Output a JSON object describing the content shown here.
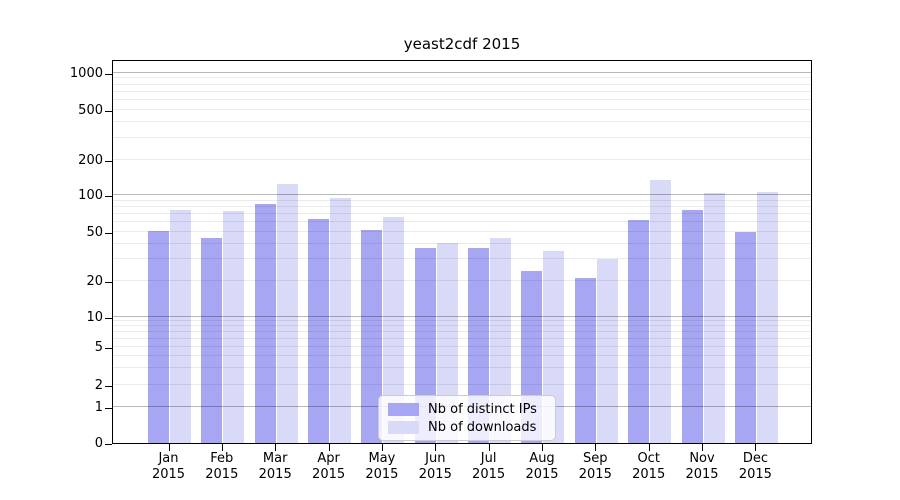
{
  "title": "yeast2cdf 2015",
  "chart_data": {
    "type": "bar",
    "title": "yeast2cdf 2015",
    "categories": [
      "Jan",
      "Feb",
      "Mar",
      "Apr",
      "May",
      "Jun",
      "Jul",
      "Aug",
      "Sep",
      "Oct",
      "Nov",
      "Dec"
    ],
    "year_label": "2015",
    "series": [
      {
        "name": "Nb of distinct IPs",
        "color": "#a6a6f2",
        "values": [
          51,
          45,
          85,
          64,
          52,
          37,
          37,
          24,
          21,
          63,
          76,
          50
        ]
      },
      {
        "name": "Nb of downloads",
        "color": "#d9d9f8",
        "values": [
          76,
          74,
          123,
          94,
          66,
          41,
          45,
          35,
          30,
          133,
          105,
          106
        ]
      }
    ],
    "yticks": [
      0,
      1,
      2,
      5,
      10,
      20,
      50,
      100,
      200,
      500,
      1000
    ],
    "yscale": "log-like (linear between 0 and 1)",
    "ylim": [
      0,
      1250
    ],
    "xlabel": "",
    "ylabel": "",
    "grid": "horizontal, minor lines light, decade lines dark, drawn over bars",
    "legend_position": "lower center, inside plot"
  }
}
